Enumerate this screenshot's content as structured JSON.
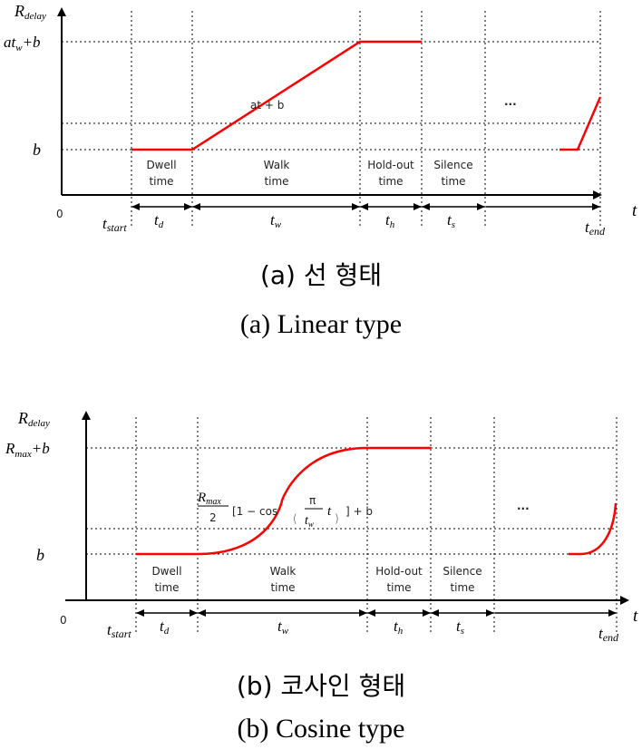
{
  "diagram_a": {
    "y_axis_label": "R",
    "y_axis_label_sub": "delay",
    "x_axis_label": "t",
    "origin_label": "0",
    "y_tick_top": "at",
    "y_tick_top_sub": "w",
    "y_tick_top_tail": "+b",
    "y_tick_b": "b",
    "ramp_label": "at + b",
    "ellipsis": "...",
    "phases": [
      {
        "line1": "Dwell",
        "line2": "time",
        "dim": "t",
        "dim_sub": "d"
      },
      {
        "line1": "Walk",
        "line2": "time",
        "dim": "t",
        "dim_sub": "w"
      },
      {
        "line1": "Hold-out",
        "line2": "time",
        "dim": "t",
        "dim_sub": "h"
      },
      {
        "line1": "Silence",
        "line2": "time",
        "dim": "t",
        "dim_sub": "s"
      }
    ],
    "t_start": "t",
    "t_start_sub": "start",
    "t_end": "t",
    "t_end_sub": "end",
    "caption_kr": "(a) 선 형태",
    "caption_en": "(a) Linear type"
  },
  "diagram_b": {
    "y_axis_label": "R",
    "y_axis_label_sub": "delay",
    "x_axis_label": "t",
    "origin_label": "0",
    "y_tick_top": "R",
    "y_tick_top_sub": "max",
    "y_tick_top_tail": "+b",
    "y_tick_b": "b",
    "formula_num": "R",
    "formula_num_sub": "max",
    "formula_den": "2",
    "formula_a": "[1 − cos",
    "formula_pi": "π",
    "formula_tw": "t",
    "formula_tw_sub": "w",
    "formula_t": "t",
    "formula_b": "] + b",
    "ellipsis": "...",
    "phases": [
      {
        "line1": "Dwell",
        "line2": "time",
        "dim": "t",
        "dim_sub": "d"
      },
      {
        "line1": "Walk",
        "line2": "time",
        "dim": "t",
        "dim_sub": "w"
      },
      {
        "line1": "Hold-out",
        "line2": "time",
        "dim": "t",
        "dim_sub": "h"
      },
      {
        "line1": "Silence",
        "line2": "time",
        "dim": "t",
        "dim_sub": "s"
      }
    ],
    "t_start": "t",
    "t_start_sub": "start",
    "t_end": "t",
    "t_end_sub": "end",
    "caption_kr": "(b) 코사인 형태",
    "caption_en": "(b) Cosine type"
  }
}
